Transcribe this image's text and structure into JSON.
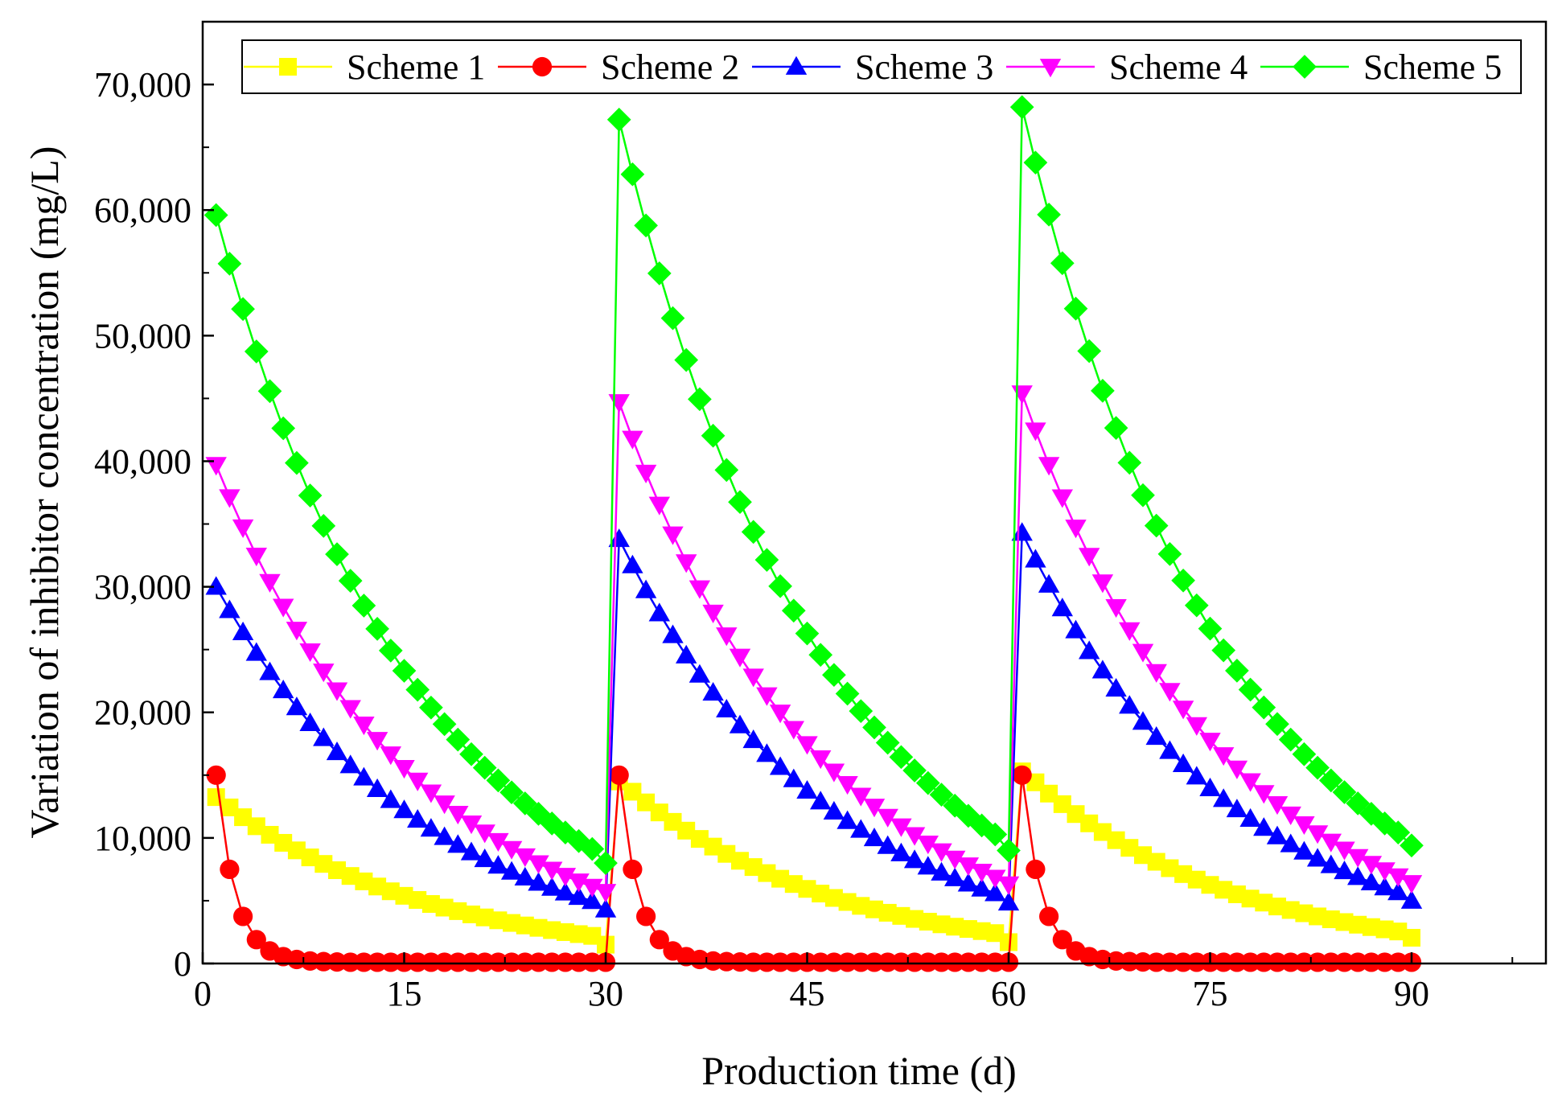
{
  "chart_data": {
    "type": "line",
    "xlabel": "Production time (d)",
    "ylabel": "Variation of inhibitor concentration (mg/L)",
    "xlim": [
      0,
      100
    ],
    "ylim": [
      0,
      75000
    ],
    "x_ticks": [
      0,
      15,
      30,
      45,
      60,
      75,
      90
    ],
    "x_tick_labels": [
      "0",
      "15",
      "30",
      "45",
      "60",
      "75",
      "90"
    ],
    "y_ticks": [
      0,
      10000,
      20000,
      30000,
      40000,
      50000,
      60000,
      70000
    ],
    "y_tick_labels": [
      "0",
      "10,000",
      "20,000",
      "30,000",
      "40,000",
      "50,000",
      "60,000",
      "70,000"
    ],
    "grid": false,
    "legend_position": "top",
    "x": [
      1,
      2,
      3,
      4,
      5,
      6,
      7,
      8,
      9,
      10,
      11,
      12,
      13,
      14,
      15,
      16,
      17,
      18,
      19,
      20,
      21,
      22,
      23,
      24,
      25,
      26,
      27,
      28,
      29,
      30,
      31,
      32,
      33,
      34,
      35,
      36,
      37,
      38,
      39,
      40,
      41,
      42,
      43,
      44,
      45,
      46,
      47,
      48,
      49,
      50,
      51,
      52,
      53,
      54,
      55,
      56,
      57,
      58,
      59,
      60,
      61,
      62,
      63,
      64,
      65,
      66,
      67,
      68,
      69,
      70,
      71,
      72,
      73,
      74,
      75,
      76,
      77,
      78,
      79,
      80,
      81,
      82,
      83,
      84,
      85,
      86,
      87,
      88,
      89,
      90
    ],
    "series": [
      {
        "name": "Scheme 1",
        "color": "#ffff00",
        "marker": "square",
        "values": [
          13250,
          12430,
          11650,
          10930,
          10250,
          9610,
          9010,
          8450,
          7930,
          7430,
          6970,
          6540,
          6130,
          5750,
          5390,
          5060,
          4740,
          4450,
          4170,
          3910,
          3670,
          3440,
          3230,
          3030,
          2840,
          2660,
          2500,
          2340,
          2200,
          1500,
          14500,
          13680,
          12830,
          12030,
          11280,
          10580,
          9920,
          9310,
          8730,
          8180,
          7680,
          7200,
          6750,
          6330,
          5940,
          5570,
          5220,
          4900,
          4590,
          4310,
          4040,
          3790,
          3550,
          3330,
          3120,
          2930,
          2750,
          2580,
          2420,
          1700,
          15300,
          14430,
          13530,
          12690,
          11900,
          11160,
          10470,
          9820,
          9210,
          8630,
          8100,
          7590,
          7120,
          6680,
          6260,
          5870,
          5510,
          5170,
          4850,
          4540,
          4260,
          4000,
          3750,
          3520,
          3300,
          3090,
          2900,
          2720,
          2550,
          2050
        ]
      },
      {
        "name": "Scheme 2",
        "color": "#ff0000",
        "marker": "circle",
        "values": [
          15000,
          7500,
          3750,
          1900,
          1000,
          550,
          320,
          200,
          150,
          120,
          100,
          100,
          100,
          100,
          100,
          100,
          100,
          100,
          100,
          100,
          100,
          100,
          100,
          100,
          100,
          100,
          100,
          100,
          100,
          100,
          15000,
          7500,
          3750,
          1900,
          1000,
          550,
          320,
          200,
          150,
          120,
          100,
          100,
          100,
          100,
          100,
          100,
          100,
          100,
          100,
          100,
          100,
          100,
          100,
          100,
          100,
          100,
          100,
          100,
          100,
          100,
          15000,
          7500,
          3750,
          1900,
          1000,
          550,
          320,
          200,
          150,
          120,
          100,
          100,
          100,
          100,
          100,
          100,
          100,
          100,
          100,
          100,
          100,
          100,
          100,
          100,
          100,
          100,
          100,
          100,
          100,
          100
        ]
      },
      {
        "name": "Scheme 3",
        "color": "#0000ff",
        "marker": "triangle-up",
        "values": [
          30000,
          28140,
          26380,
          24740,
          23200,
          21760,
          20410,
          19140,
          17950,
          16830,
          15790,
          14810,
          13890,
          13020,
          12210,
          11450,
          10740,
          10070,
          9450,
          8860,
          8310,
          7790,
          7310,
          6850,
          6430,
          6030,
          5650,
          5300,
          4970,
          4300,
          33800,
          31710,
          29730,
          27890,
          26150,
          24530,
          23000,
          21570,
          20230,
          18970,
          17790,
          16690,
          15650,
          14680,
          13760,
          12910,
          12100,
          11350,
          10650,
          9980,
          9360,
          8780,
          8230,
          7720,
          7240,
          6790,
          6370,
          5970,
          5600,
          4850,
          34300,
          32170,
          30170,
          28290,
          26530,
          24880,
          23340,
          21890,
          20530,
          19250,
          18050,
          16930,
          15880,
          14890,
          13960,
          13100,
          12280,
          11520,
          10800,
          10130,
          9500,
          8910,
          8350,
          7830,
          7350,
          6890,
          6460,
          6060,
          5680,
          5000
        ]
      },
      {
        "name": "Scheme 4",
        "color": "#ff00ff",
        "marker": "triangle-down",
        "values": [
          39700,
          37130,
          34730,
          32480,
          30380,
          28410,
          26580,
          24860,
          23250,
          21750,
          20340,
          19030,
          17800,
          16650,
          15570,
          14560,
          13620,
          12740,
          11920,
          11150,
          10430,
          9750,
          9120,
          8530,
          7980,
          7470,
          6980,
          6530,
          6110,
          5700,
          44700,
          41790,
          39080,
          36540,
          34170,
          31950,
          29880,
          27940,
          26130,
          24430,
          22850,
          21360,
          19980,
          18680,
          17470,
          16340,
          15280,
          14290,
          13360,
          12490,
          11680,
          10920,
          10220,
          9550,
          8930,
          8350,
          7810,
          7310,
          6830,
          6300,
          45400,
          42450,
          39700,
          37120,
          34710,
          32460,
          30350,
          28380,
          26540,
          24820,
          23210,
          21700,
          20290,
          18980,
          17740,
          16590,
          15520,
          14510,
          13570,
          12690,
          11860,
          11090,
          10370,
          9700,
          9070,
          8480,
          7930,
          7420,
          6940,
          6400
        ]
      },
      {
        "name": "Scheme 5",
        "color": "#00ff00",
        "marker": "diamond",
        "values": [
          59600,
          55730,
          52120,
          48740,
          45580,
          42620,
          39860,
          37270,
          34850,
          32590,
          30480,
          28500,
          26650,
          24920,
          23310,
          21800,
          20380,
          19060,
          17830,
          16670,
          15590,
          14580,
          13630,
          12750,
          11920,
          11150,
          10430,
          9750,
          9120,
          8000,
          67200,
          62850,
          58770,
          54960,
          51390,
          48060,
          44940,
          42030,
          39300,
          36750,
          34370,
          32140,
          30050,
          28100,
          26280,
          24580,
          22980,
          21490,
          20100,
          18800,
          17580,
          16440,
          15370,
          14370,
          13440,
          12570,
          11760,
          10990,
          10280,
          9000,
          68200,
          63780,
          59640,
          55770,
          52150,
          48770,
          45610,
          42650,
          39880,
          37290,
          34870,
          32610,
          30500,
          28520,
          26670,
          24940,
          23320,
          21810,
          20390,
          19070,
          17830,
          16670,
          15590,
          14580,
          13640,
          12750,
          11920,
          11150,
          10430,
          9400
        ]
      }
    ]
  }
}
